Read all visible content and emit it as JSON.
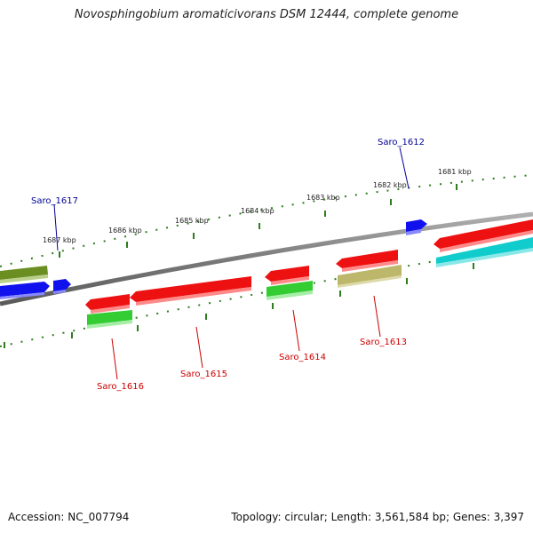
{
  "title": "Novosphingobium aromaticivorans DSM 12444, complete genome",
  "footer": {
    "accession": "Accession: NC_007794",
    "stats": "Topology: circular; Length: 3,561,584 bp; Genes: 3,397"
  },
  "colors": {
    "backbone": "#808080",
    "tick": "#2e7d1e",
    "label_forward": "#000099",
    "label_reverse": "#cc0000",
    "red": "#ee1111",
    "green": "#33cc33",
    "blue": "#1111ee",
    "olive": "#6b8e23",
    "khaki": "#bdb76b",
    "cyan": "#11cccc"
  },
  "kbp_labels": [
    "1687 kbp",
    "1686 kbp",
    "1685 kbp",
    "1684 kbp",
    "1683 kbp",
    "1682 kbp",
    "1681 kbp"
  ],
  "gene_labels": [
    {
      "text": "Saro_1617",
      "strand": "forward"
    },
    {
      "text": "Saro_1612",
      "strand": "forward"
    },
    {
      "text": "Saro_1616",
      "strand": "reverse"
    },
    {
      "text": "Saro_1615",
      "strand": "reverse"
    },
    {
      "text": "Saro_1614",
      "strand": "reverse"
    },
    {
      "text": "Saro_1613",
      "strand": "reverse"
    }
  ]
}
